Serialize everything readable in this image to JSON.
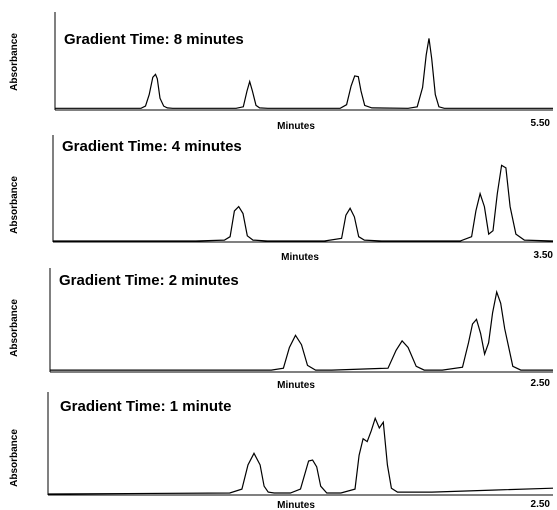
{
  "chart_data": [
    {
      "type": "line",
      "title": "Gradient Time:  8 minutes",
      "xlabel": "Minutes",
      "ylabel": "Absorbance",
      "x_end_label": "5.50",
      "xlim": [
        0,
        5.5
      ],
      "series": [
        {
          "x": [
            0,
            0.6,
            0.95,
            1.0,
            1.04,
            1.08,
            1.11,
            1.13,
            1.16,
            1.2,
            1.24,
            1.3,
            1.5,
            1.8,
            2.0,
            2.08,
            2.12,
            2.15,
            2.18,
            2.22,
            2.26,
            2.35,
            2.8,
            3.15,
            3.22,
            3.27,
            3.31,
            3.35,
            3.38,
            3.42,
            3.5,
            3.9,
            4.0,
            4.06,
            4.1,
            4.13,
            4.16,
            4.2,
            4.24,
            4.3,
            4.6,
            5.0,
            5.5
          ],
          "y": [
            0.01,
            0.01,
            0.01,
            0.04,
            0.2,
            0.44,
            0.48,
            0.42,
            0.15,
            0.04,
            0.015,
            0.01,
            0.01,
            0.01,
            0.01,
            0.03,
            0.25,
            0.38,
            0.25,
            0.05,
            0.015,
            0.01,
            0.01,
            0.01,
            0.06,
            0.32,
            0.46,
            0.45,
            0.25,
            0.05,
            0.015,
            0.01,
            0.03,
            0.3,
            0.75,
            0.98,
            0.7,
            0.2,
            0.03,
            0.01,
            0.01,
            0.01,
            0.01
          ]
        }
      ]
    },
    {
      "type": "line",
      "title": "Gradient Time:  4 minutes",
      "xlabel": "Minutes",
      "ylabel": "Absorbance",
      "x_end_label": "3.50",
      "xlim": [
        0,
        3.5
      ],
      "series": [
        {
          "x": [
            0,
            1.0,
            1.2,
            1.24,
            1.27,
            1.3,
            1.33,
            1.36,
            1.4,
            1.5,
            1.9,
            2.02,
            2.05,
            2.08,
            2.11,
            2.14,
            2.18,
            2.3,
            2.85,
            2.93,
            2.96,
            2.99,
            3.02,
            3.05,
            3.08,
            3.11,
            3.14,
            3.17,
            3.2,
            3.24,
            3.3,
            3.5
          ],
          "y": [
            0,
            0,
            0.01,
            0.05,
            0.35,
            0.4,
            0.32,
            0.06,
            0.01,
            0,
            0,
            0.03,
            0.3,
            0.38,
            0.28,
            0.05,
            0.01,
            0,
            0,
            0.05,
            0.35,
            0.55,
            0.4,
            0.08,
            0.12,
            0.55,
            0.88,
            0.85,
            0.4,
            0.08,
            0.01,
            0
          ]
        }
      ]
    },
    {
      "type": "line",
      "title": "Gradient Time:  2 minutes",
      "xlabel": "Minutes",
      "ylabel": "Absorbance",
      "x_end_label": "2.50",
      "xlim": [
        0,
        2.5
      ],
      "series": [
        {
          "x": [
            0,
            1.1,
            1.16,
            1.19,
            1.22,
            1.25,
            1.28,
            1.32,
            1.4,
            1.68,
            1.72,
            1.75,
            1.78,
            1.82,
            1.86,
            1.95,
            2.05,
            2.08,
            2.1,
            2.12,
            2.14,
            2.16,
            2.18,
            2.2,
            2.22,
            2.24,
            2.26,
            2.3,
            2.34,
            2.5
          ],
          "y": [
            0.01,
            0.01,
            0.03,
            0.25,
            0.38,
            0.28,
            0.06,
            0.01,
            0.01,
            0.03,
            0.22,
            0.32,
            0.25,
            0.05,
            0.01,
            0.01,
            0.04,
            0.3,
            0.5,
            0.55,
            0.4,
            0.18,
            0.3,
            0.62,
            0.84,
            0.72,
            0.45,
            0.05,
            0.01,
            0.01
          ]
        }
      ]
    },
    {
      "type": "line",
      "title": "Gradient Time:  1 minute",
      "xlabel": "Minutes",
      "ylabel": "Absorbance",
      "x_end_label": "2.50",
      "xlim": [
        0,
        2.5
      ],
      "series": [
        {
          "x": [
            0,
            0.9,
            0.96,
            0.99,
            1.02,
            1.05,
            1.07,
            1.09,
            1.12,
            1.2,
            1.25,
            1.29,
            1.31,
            1.33,
            1.35,
            1.38,
            1.45,
            1.52,
            1.54,
            1.56,
            1.58,
            1.6,
            1.62,
            1.64,
            1.66,
            1.68,
            1.7,
            1.73,
            1.77,
            1.9,
            2.2,
            2.5
          ],
          "y": [
            0,
            0.01,
            0.05,
            0.3,
            0.42,
            0.3,
            0.08,
            0.02,
            0.01,
            0.01,
            0.05,
            0.34,
            0.35,
            0.28,
            0.08,
            0.01,
            0.01,
            0.05,
            0.4,
            0.57,
            0.54,
            0.65,
            0.78,
            0.68,
            0.74,
            0.3,
            0.06,
            0.02,
            0.02,
            0.02,
            0.04,
            0.06
          ]
        }
      ]
    }
  ]
}
